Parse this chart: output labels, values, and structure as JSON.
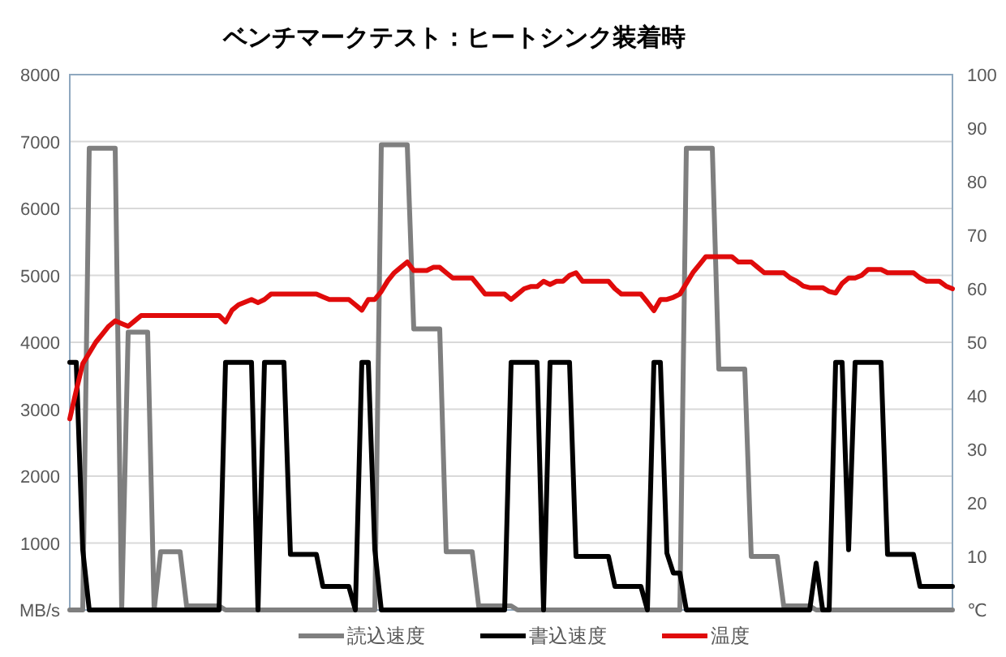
{
  "chart_data": {
    "type": "line",
    "title": "ベンチマークテスト：ヒートシンク装着時",
    "categories": [
      null,
      null,
      null,
      null,
      null,
      null,
      null,
      null,
      null,
      null,
      null,
      null,
      null,
      null,
      null,
      null,
      null,
      null,
      null,
      null,
      null,
      null,
      null,
      null,
      null,
      null,
      null,
      null,
      null,
      null,
      null,
      null,
      null,
      null,
      null,
      null,
      null,
      null,
      null,
      null,
      null,
      null,
      null,
      null,
      null,
      null,
      null,
      null,
      null,
      null,
      null,
      null,
      null,
      null,
      null,
      null,
      null,
      null,
      null,
      null,
      null,
      null,
      null,
      null,
      null,
      null,
      null,
      null,
      null,
      null,
      null,
      null,
      null,
      null,
      null,
      null,
      null,
      null,
      null,
      null,
      null,
      null,
      null,
      null,
      null,
      null,
      null,
      null,
      null,
      null,
      null,
      null,
      null,
      null,
      null,
      null,
      null,
      null,
      null,
      null,
      null,
      null,
      null,
      null,
      null,
      null,
      null,
      null,
      null,
      null,
      null,
      null,
      null,
      null,
      null,
      null,
      null,
      null,
      null,
      null,
      null,
      null,
      null,
      null,
      null,
      null,
      null,
      null,
      null,
      null,
      null,
      null,
      null,
      null,
      null,
      null,
      null
    ],
    "series": [
      {
        "name": "読込速度",
        "color": "#7f7f7f",
        "values": [
          0,
          0,
          0,
          6900,
          6900,
          6900,
          6900,
          6900,
          0,
          4150,
          4150,
          4150,
          4150,
          0,
          870,
          870,
          870,
          870,
          60,
          60,
          60,
          60,
          60,
          60,
          0,
          0,
          0,
          0,
          0,
          0,
          0,
          0,
          0,
          0,
          0,
          0,
          0,
          0,
          0,
          0,
          0,
          0,
          0,
          0,
          0,
          0,
          0,
          0,
          6950,
          6950,
          6950,
          6950,
          6950,
          4200,
          4200,
          4200,
          4200,
          4200,
          870,
          870,
          870,
          870,
          870,
          60,
          60,
          60,
          60,
          60,
          60,
          0,
          0,
          0,
          0,
          0,
          0,
          0,
          0,
          0,
          0,
          0,
          0,
          0,
          0,
          0,
          0,
          0,
          0,
          0,
          0,
          0,
          0,
          0,
          0,
          0,
          0,
          6900,
          6900,
          6900,
          6900,
          6900,
          3600,
          3600,
          3600,
          3600,
          3600,
          800,
          800,
          800,
          800,
          800,
          60,
          60,
          60,
          60,
          60,
          0,
          0,
          0,
          0,
          0,
          0,
          0,
          0,
          0,
          0,
          0,
          0,
          0,
          0,
          0,
          0,
          0,
          0,
          0,
          0,
          0,
          0
        ]
      },
      {
        "name": "書込速度",
        "color": "#000000",
        "values": [
          3700,
          3700,
          900,
          0,
          0,
          0,
          0,
          0,
          0,
          0,
          0,
          0,
          0,
          0,
          0,
          0,
          0,
          0,
          0,
          0,
          0,
          0,
          0,
          0,
          3700,
          3700,
          3700,
          3700,
          3700,
          0,
          3700,
          3700,
          3700,
          3700,
          830,
          830,
          830,
          830,
          830,
          350,
          350,
          350,
          350,
          350,
          0,
          3700,
          3700,
          900,
          0,
          0,
          0,
          0,
          0,
          0,
          0,
          0,
          0,
          0,
          0,
          0,
          0,
          0,
          0,
          0,
          0,
          0,
          0,
          0,
          3700,
          3700,
          3700,
          3700,
          3700,
          0,
          3700,
          3700,
          3700,
          3700,
          800,
          800,
          800,
          800,
          800,
          800,
          350,
          350,
          350,
          350,
          350,
          0,
          3700,
          3700,
          850,
          550,
          550,
          0,
          0,
          0,
          0,
          0,
          0,
          0,
          0,
          0,
          0,
          0,
          0,
          0,
          0,
          0,
          0,
          0,
          0,
          0,
          0,
          700,
          0,
          0,
          3700,
          3700,
          900,
          3700,
          3700,
          3700,
          3700,
          3700,
          830,
          830,
          830,
          830,
          830,
          350,
          350,
          350,
          350,
          350,
          350
        ]
      },
      {
        "name": "温度",
        "color": "#e00b0b",
        "axis": "y2",
        "values": [
          35.7,
          41,
          46,
          48,
          50,
          51.5,
          53,
          54,
          53.5,
          53,
          54,
          55,
          55,
          55,
          55,
          55,
          55,
          55,
          55,
          55,
          55,
          55,
          55,
          55,
          53.8,
          56,
          57,
          57.5,
          58,
          57.4,
          58,
          59,
          59,
          59,
          59,
          59,
          59,
          59,
          59,
          58.5,
          58,
          58,
          58,
          58,
          57,
          56,
          58,
          58,
          59.5,
          61.5,
          63,
          64,
          65,
          63.4,
          63.4,
          63.4,
          64,
          64,
          63,
          62,
          62,
          62,
          62,
          60.5,
          59,
          59,
          59,
          59,
          58,
          59,
          60,
          60.4,
          60.4,
          61.4,
          60.8,
          61.4,
          61.4,
          62.5,
          63,
          61.4,
          61.4,
          61.4,
          61.4,
          61.4,
          60,
          59,
          59,
          59,
          59,
          57.5,
          55.9,
          58,
          58,
          58.4,
          59,
          61,
          63,
          64.5,
          66,
          66,
          66,
          66,
          66,
          65,
          65,
          65,
          64,
          63,
          63,
          63,
          63,
          62,
          61.4,
          60.5,
          60.2,
          60.2,
          60.2,
          59.5,
          59.2,
          61,
          62,
          62,
          62.5,
          63.6,
          63.6,
          63.6,
          63,
          63,
          63,
          63,
          63,
          62,
          61.4,
          61.4,
          61.4,
          60.5,
          60
        ]
      }
    ],
    "ylim": [
      0,
      8000
    ],
    "yticks": [
      {
        "value": 0,
        "label": "MB/s"
      },
      1000,
      2000,
      3000,
      4000,
      5000,
      6000,
      7000,
      8000
    ],
    "y2lim": [
      0,
      100
    ],
    "y2ticks": [
      {
        "value": 0,
        "label": "℃"
      },
      10,
      20,
      30,
      40,
      50,
      60,
      70,
      80,
      90,
      100
    ],
    "grid": "y",
    "legend": "bottom"
  }
}
